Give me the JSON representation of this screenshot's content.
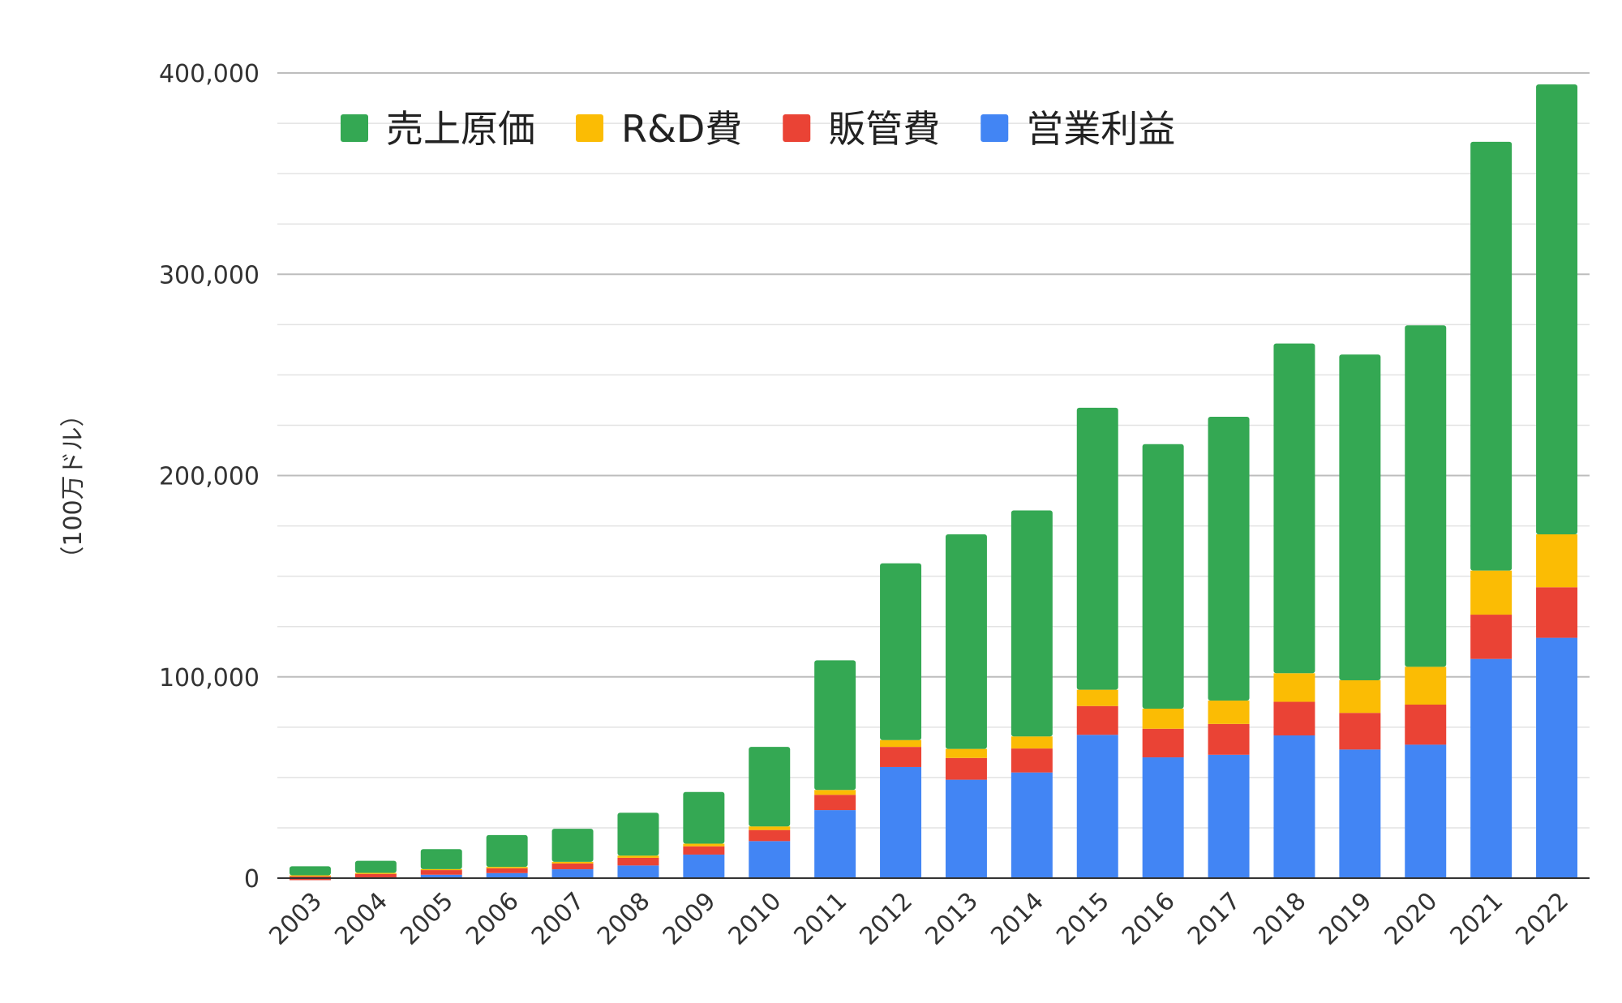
{
  "chart_data": {
    "type": "bar",
    "stacked": true,
    "title": "",
    "xlabel": "",
    "ylabel": "（100万ドル）",
    "ylim": [
      0,
      400000
    ],
    "yticks": [
      0,
      100000,
      200000,
      300000,
      400000
    ],
    "ytick_labels": [
      "0",
      "100,000",
      "200,000",
      "300,000",
      "400,000"
    ],
    "grid": true,
    "legend_position": "top-left",
    "categories": [
      "2003",
      "2004",
      "2005",
      "2006",
      "2007",
      "2008",
      "2009",
      "2010",
      "2011",
      "2012",
      "2013",
      "2014",
      "2015",
      "2016",
      "2017",
      "2018",
      "2019",
      "2020",
      "2021",
      "2022"
    ],
    "series": [
      {
        "name": "営業利益",
        "color": "#4285F4",
        "values": [
          -1000,
          300,
          1700,
          2500,
          4400,
          6300,
          11700,
          18400,
          33800,
          55200,
          48900,
          52500,
          71200,
          60000,
          61300,
          70900,
          63900,
          66300,
          108900,
          119400
        ]
      },
      {
        "name": "販管費",
        "color": "#EA4335",
        "values": [
          1900,
          1800,
          2300,
          2400,
          2900,
          3800,
          4100,
          5500,
          7600,
          10000,
          10800,
          11900,
          14300,
          14200,
          15300,
          16700,
          18200,
          19900,
          22000,
          25100
        ]
      },
      {
        "name": "R&D費",
        "color": "#FBBC04",
        "values": [
          500,
          500,
          500,
          700,
          800,
          1100,
          1300,
          1800,
          2400,
          3400,
          4500,
          6000,
          8100,
          10000,
          11600,
          14200,
          16200,
          18800,
          21900,
          26300
        ]
      },
      {
        "name": "売上原価",
        "color": "#34A853",
        "values": [
          4500,
          6000,
          9900,
          15800,
          16400,
          21300,
          25700,
          39500,
          64400,
          87800,
          106600,
          112300,
          140100,
          131400,
          141000,
          163800,
          161800,
          169600,
          213000,
          223500
        ]
      }
    ]
  }
}
